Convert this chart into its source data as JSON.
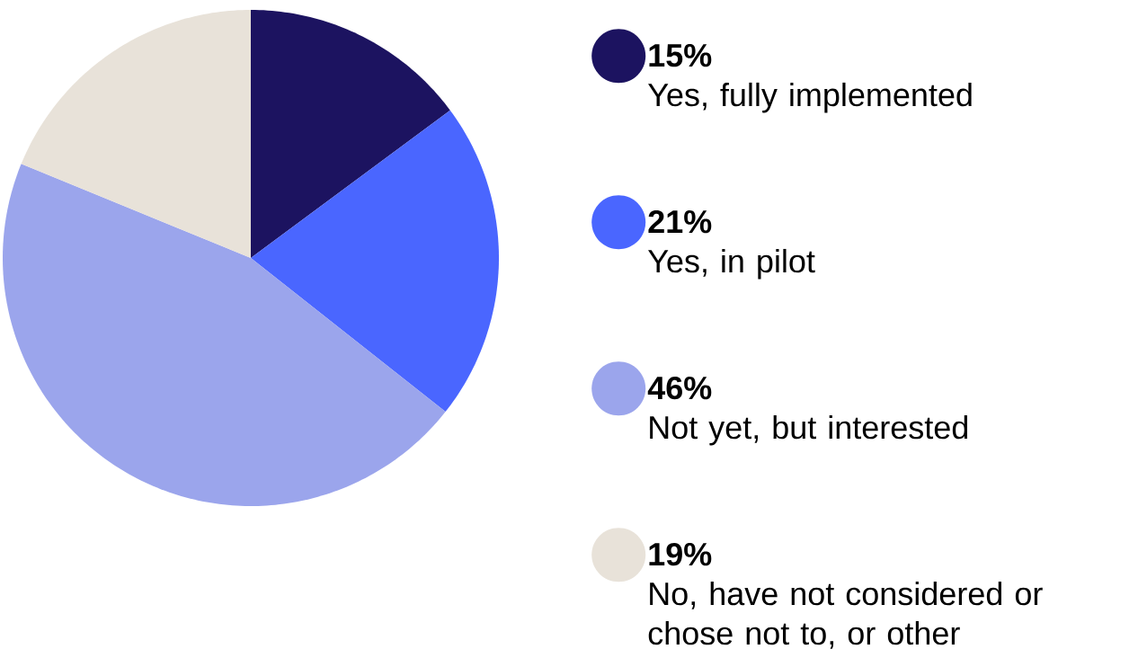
{
  "chart_data": {
    "type": "pie",
    "categories": [
      "Yes, fully implemented",
      "Yes, in pilot",
      "Not yet, but interested",
      "No, have not considered or chose not to, or other"
    ],
    "values": [
      15,
      21,
      46,
      19
    ],
    "colors": [
      "#1c1360",
      "#4a66ff",
      "#9ba5ec",
      "#e8e2d9"
    ],
    "value_labels": [
      "15%",
      "21%",
      "46%",
      "19%"
    ],
    "legend": "right"
  }
}
